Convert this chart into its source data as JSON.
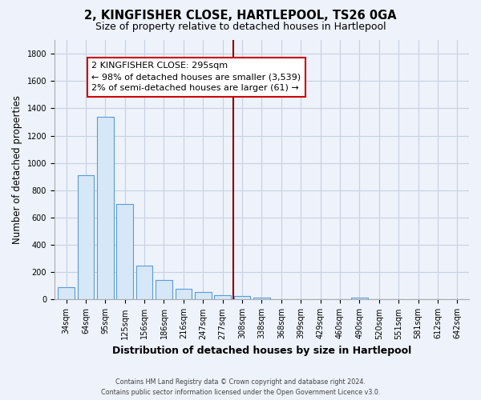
{
  "title": "2, KINGFISHER CLOSE, HARTLEPOOL, TS26 0GA",
  "subtitle": "Size of property relative to detached houses in Hartlepool",
  "xlabel": "Distribution of detached houses by size in Hartlepool",
  "ylabel": "Number of detached properties",
  "categories": [
    "34sqm",
    "64sqm",
    "95sqm",
    "125sqm",
    "156sqm",
    "186sqm",
    "216sqm",
    "247sqm",
    "277sqm",
    "308sqm",
    "338sqm",
    "368sqm",
    "399sqm",
    "429sqm",
    "460sqm",
    "490sqm",
    "520sqm",
    "551sqm",
    "581sqm",
    "612sqm",
    "642sqm"
  ],
  "values": [
    90,
    910,
    1340,
    700,
    250,
    145,
    80,
    55,
    30,
    25,
    15,
    0,
    0,
    0,
    0,
    15,
    0,
    0,
    0,
    0,
    0
  ],
  "bar_color": "#d6e8f7",
  "bar_edge_color": "#5b9bd5",
  "vline_x": 8.55,
  "vline_color": "#8b0000",
  "annotation_title": "2 KINGFISHER CLOSE: 295sqm",
  "annotation_line1": "← 98% of detached houses are smaller (3,539)",
  "annotation_line2": "2% of semi-detached houses are larger (61) →",
  "annotation_box_color": "#ffffff",
  "annotation_box_edge": "#cc0000",
  "ylim": [
    0,
    1900
  ],
  "yticks": [
    0,
    200,
    400,
    600,
    800,
    1000,
    1200,
    1400,
    1600,
    1800
  ],
  "footer1": "Contains HM Land Registry data © Crown copyright and database right 2024.",
  "footer2": "Contains public sector information licensed under the Open Government Licence v3.0.",
  "bg_color": "#edf2fb",
  "grid_color": "#c8d0e0",
  "title_fontsize": 10.5,
  "subtitle_fontsize": 9,
  "tick_fontsize": 7,
  "ylabel_fontsize": 8.5,
  "xlabel_fontsize": 9,
  "ann_fontsize": 8.0,
  "ann_title_fontsize": 8.5
}
